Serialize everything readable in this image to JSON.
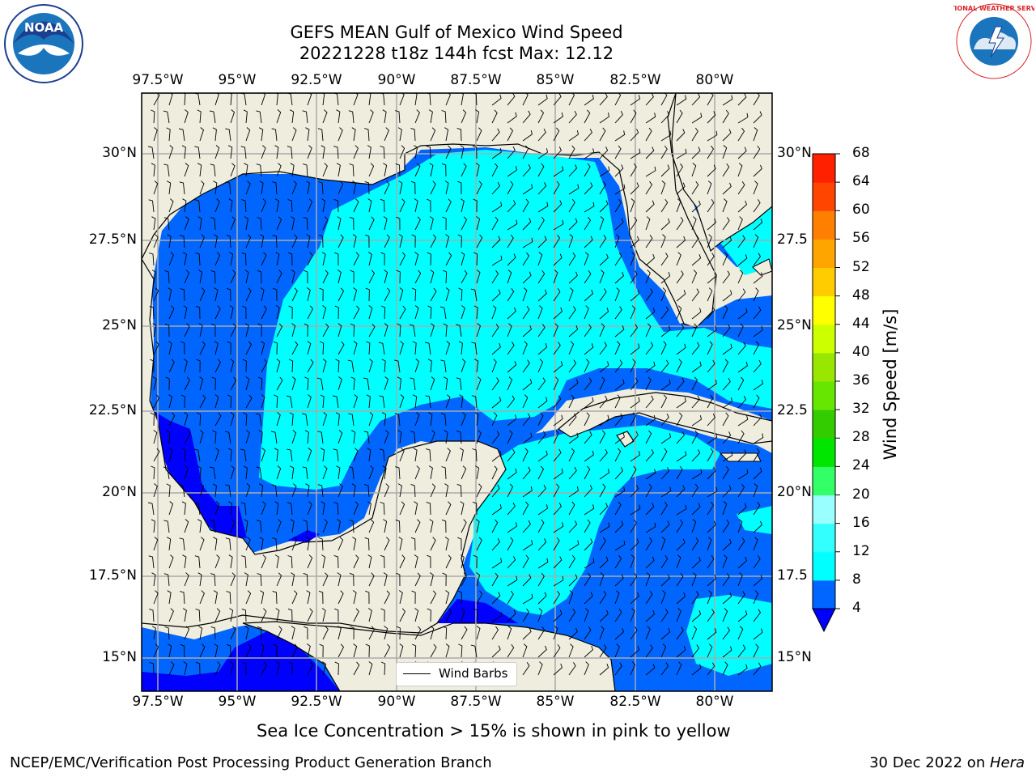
{
  "title": {
    "line1": "GEFS MEAN Gulf of Mexico Wind Speed",
    "line2": "20221228 t18z 144h fcst   Max: 12.12"
  },
  "map": {
    "lon_ticks": [
      "97.5°W",
      "95°W",
      "92.5°W",
      "90°W",
      "87.5°W",
      "85°W",
      "82.5°W",
      "80°W"
    ],
    "lat_ticks_left": [
      "30°N",
      "27.5°N",
      "25°N",
      "22.5°N",
      "20°N",
      "17.5°N",
      "15°N"
    ],
    "lat_ticks_right": [
      "30°N",
      "27.5",
      "25°N",
      "22.5",
      "20°N",
      "17.5",
      "15°N"
    ],
    "land_color": "#efedde",
    "legend_label": "Wind Barbs"
  },
  "colorbar": {
    "title": "Wind Speed [m/s]",
    "levels": [
      "4",
      "8",
      "12",
      "16",
      "20",
      "24",
      "28",
      "32",
      "36",
      "40",
      "44",
      "48",
      "52",
      "56",
      "60",
      "64",
      "68"
    ],
    "colors": [
      "#0066ff",
      "#00ffff",
      "#33ffff",
      "#99ffff",
      "#33ff66",
      "#00e600",
      "#33cc00",
      "#66e600",
      "#99e600",
      "#ccff00",
      "#ffff00",
      "#ffcc00",
      "#ffa500",
      "#ff8000",
      "#ff4500",
      "#ff2000"
    ],
    "under_color": "#0000ff"
  },
  "caption": "Sea Ice Concentration > 15% is shown in pink to yellow",
  "footer": {
    "left": "NCEP/EMC/Verification Post Processing Product Generation Branch",
    "right_date": "30 Dec 2022 on ",
    "right_host": "Hera"
  },
  "logos": {
    "noaa_text": "NOAA",
    "nws_text": "NATIONAL WEATHER SERVICE"
  }
}
